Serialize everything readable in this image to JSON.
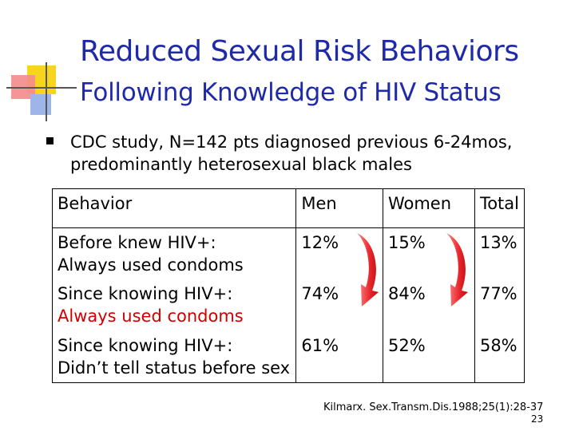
{
  "slide": {
    "title_line1": "Reduced Sexual Risk Behaviors",
    "title_line2": "Following Knowledge of HIV Status",
    "title_color": "#1f2aa8",
    "bullet": "CDC study, N=142 pts diagnosed previous 6-24mos, predominantly heterosexual black males",
    "table": {
      "headers": [
        "Behavior",
        "Men",
        "Women",
        "Total"
      ],
      "rows": [
        {
          "behavior_line1": "Before knew HIV+:",
          "behavior_line2": "Always used condoms",
          "men": "12%",
          "women": "15%",
          "total": "13%"
        },
        {
          "behavior_line1": "Since knowing HIV+:",
          "behavior_line2": "Always used condoms",
          "men": "74%",
          "women": "84%",
          "total": "77%"
        },
        {
          "behavior_line1": "Since knowing HIV+:",
          "behavior_line2": "Didn’t tell status before sex",
          "men": "61%",
          "women": "52%",
          "total": "58%"
        }
      ]
    },
    "highlight_color": "#d00000",
    "citation": "Kilmarx. Sex.Transm.Dis.1988;25(1):28-37",
    "page_number": "23"
  }
}
